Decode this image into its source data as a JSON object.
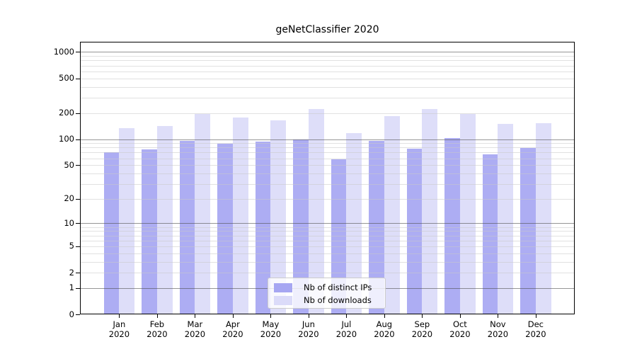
{
  "title": "geNetClassifier 2020",
  "colors": {
    "bar_distinct_ips": "#a6a6f2",
    "bar_downloads": "#dbdbf9",
    "grid_major": "#969696",
    "grid_minor": "#e5e5e5",
    "axis": "#000000"
  },
  "legend": {
    "items": [
      {
        "label": "Nb of distinct IPs",
        "color": "#a6a6f2"
      },
      {
        "label": "Nb of downloads",
        "color": "#dbdbf9"
      }
    ]
  },
  "chart_data": {
    "type": "bar",
    "title": "geNetClassifier 2020",
    "scale": "log1p",
    "grid": true,
    "legend_position": "bottom-center",
    "xlabel": "",
    "ylabel": "",
    "year": "2020",
    "categories": [
      "Jan",
      "Feb",
      "Mar",
      "Apr",
      "May",
      "Jun",
      "Jul",
      "Aug",
      "Sep",
      "Oct",
      "Nov",
      "Dec"
    ],
    "series": [
      {
        "name": "Nb of distinct IPs",
        "color": "#a6a6f2",
        "values": [
          70,
          76,
          96,
          88,
          93,
          100,
          58,
          96,
          78,
          102,
          67,
          79
        ]
      },
      {
        "name": "Nb of downloads",
        "color": "#dbdbf9",
        "values": [
          134,
          142,
          196,
          176,
          165,
          222,
          117,
          183,
          222,
          195,
          151,
          152
        ]
      }
    ],
    "y_ticks": [
      0,
      1,
      2,
      5,
      10,
      20,
      50,
      100,
      200,
      500,
      1000
    ],
    "grid_major_values": [
      1,
      10,
      100,
      1000
    ],
    "grid_minor_values": [
      2,
      3,
      4,
      5,
      6,
      7,
      8,
      9,
      20,
      30,
      40,
      50,
      60,
      70,
      80,
      90,
      200,
      300,
      400,
      500,
      600,
      700,
      800,
      900
    ],
    "ylim": [
      0,
      1300
    ]
  }
}
